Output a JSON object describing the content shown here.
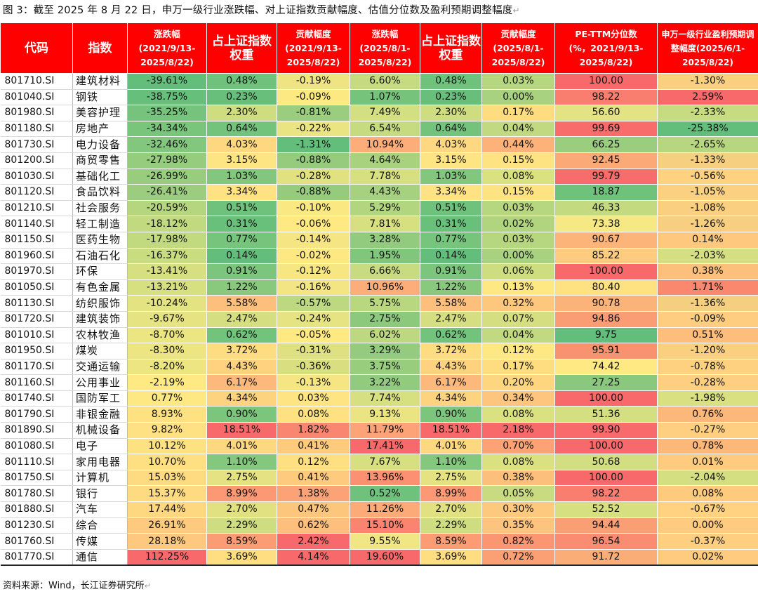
{
  "caption": "图 3：截至 2025 年 8 月 22 日，申万一级行业涨跌幅、对上证指数贡献幅度、估值分位数及盈利预期调整幅度",
  "source": "资料来源：Wind，长江证券研究所",
  "return_mark": "↵",
  "headers": [
    {
      "line1": "代码",
      "line2": "",
      "line3": ""
    },
    {
      "line1": "指数",
      "line2": "",
      "line3": ""
    },
    {
      "line1": "涨跌幅",
      "line2": "(2021/9/13-",
      "line3": "2025/8/22)"
    },
    {
      "line1": "占上证指数",
      "line2": "权重",
      "line3": ""
    },
    {
      "line1": "贡献幅度",
      "line2": "(2021/9/13-",
      "line3": "2025/8/22)"
    },
    {
      "line1": "涨跌幅",
      "line2": "(2025/8/1-",
      "line3": "2025/8/22)"
    },
    {
      "line1": "占上证指数",
      "line2": "权重",
      "line3": ""
    },
    {
      "line1": "贡献幅度",
      "line2": "(2025/8/1-",
      "line3": "2025/8/22)"
    },
    {
      "line1": "PE-TTM分位数",
      "line2": "(%，2021/9/13-",
      "line3": "2025/8/22)"
    },
    {
      "line1": "申万一级行业盈利预期调",
      "line2": "整幅度(2025/6/1-",
      "line3": "2025/8/22)"
    }
  ],
  "rows": [
    {
      "code": "801710.SI",
      "name": "建筑材料",
      "c1": "-39.61%",
      "c2": "0.48%",
      "c3": "-0.19%",
      "c4": "6.60%",
      "c5": "0.48%",
      "c6": "0.03%",
      "c7": "100.00",
      "c8": "-1.30%",
      "colors": [
        "#63be7b",
        "#6ec27b",
        "#eee482",
        "#c6db80",
        "#6ec27b",
        "#b6d67f",
        "#f8696b",
        "#f8d080"
      ]
    },
    {
      "code": "801040.SI",
      "name": "钢铁",
      "c1": "-38.75%",
      "c2": "0.23%",
      "c3": "-0.09%",
      "c4": "1.07%",
      "c5": "0.23%",
      "c6": "0.00%",
      "c7": "98.22",
      "c8": "2.59%",
      "colors": [
        "#66bf7b",
        "#67bf7b",
        "#fde982",
        "#76c47c",
        "#67bf7b",
        "#a8d27f",
        "#f97e6f",
        "#f8696b"
      ]
    },
    {
      "code": "801980.SI",
      "name": "美容护理",
      "c1": "-35.25%",
      "c2": "2.30%",
      "c3": "-0.81%",
      "c4": "7.49%",
      "c5": "2.30%",
      "c6": "0.17%",
      "c7": "56.60",
      "c8": "-2.33%",
      "colors": [
        "#75c37c",
        "#cfdd81",
        "#9bcd7e",
        "#d3df81",
        "#cfdd81",
        "#fedd81",
        "#e3e383",
        "#c7dc80"
      ]
    },
    {
      "code": "801180.SI",
      "name": "房地产",
      "c1": "-34.34%",
      "c2": "0.64%",
      "c3": "-0.22%",
      "c4": "6.54%",
      "c5": "0.64%",
      "c6": "0.04%",
      "c7": "99.69",
      "c8": "-25.38%",
      "colors": [
        "#7ac57c",
        "#73c37c",
        "#eae482",
        "#c6db80",
        "#73c37c",
        "#c1d980",
        "#f86d6c",
        "#63be7b"
      ]
    },
    {
      "code": "801730.SI",
      "name": "电力设备",
      "c1": "-32.46%",
      "c2": "4.03%",
      "c3": "-1.31%",
      "c4": "10.94%",
      "c5": "4.03%",
      "c6": "0.44%",
      "c7": "66.25",
      "c8": "-2.65%",
      "colors": [
        "#82c77d",
        "#fed880",
        "#63be7b",
        "#fcad79",
        "#fed880",
        "#fcb279",
        "#9bcd7e",
        "#b6d77f"
      ]
    },
    {
      "code": "801200.SI",
      "name": "商贸零售",
      "c1": "-27.98%",
      "c2": "3.15%",
      "c3": "-0.88%",
      "c4": "4.64%",
      "c5": "3.15%",
      "c6": "0.15%",
      "c7": "92.45",
      "c8": "-1.33%",
      "colors": [
        "#95cc7e",
        "#fee583",
        "#96cb7e",
        "#a9d27f",
        "#fee583",
        "#fee382",
        "#fbaa77",
        "#f6cf80"
      ]
    },
    {
      "code": "801030.SI",
      "name": "基础化工",
      "c1": "-26.99%",
      "c2": "1.03%",
      "c3": "-0.28%",
      "c4": "7.78%",
      "c5": "1.03%",
      "c6": "0.08%",
      "c7": "99.79",
      "c8": "-0.56%",
      "colors": [
        "#99cd7e",
        "#82c77d",
        "#e1e182",
        "#d7e081",
        "#82c77d",
        "#dae181",
        "#f86c6b",
        "#fed281"
      ]
    },
    {
      "code": "801120.SI",
      "name": "食品饮料",
      "c1": "-26.41%",
      "c2": "3.34%",
      "c3": "-0.88%",
      "c4": "4.43%",
      "c5": "3.34%",
      "c6": "0.15%",
      "c7": "18.87",
      "c8": "-1.05%",
      "colors": [
        "#9ccd7e",
        "#fee283",
        "#96cb7e",
        "#a6d17e",
        "#fee283",
        "#fee382",
        "#6fc27b",
        "#fbd080"
      ]
    },
    {
      "code": "801210.SI",
      "name": "社会服务",
      "c1": "-20.59%",
      "c2": "0.51%",
      "c3": "-0.10%",
      "c4": "5.29%",
      "c5": "0.51%",
      "c6": "0.03%",
      "c7": "46.33",
      "c8": "-1.08%",
      "colors": [
        "#b5d67f",
        "#6fc27b",
        "#fae882",
        "#b2d57f",
        "#6fc27b",
        "#b6d67f",
        "#c4da80",
        "#fad080"
      ]
    },
    {
      "code": "801140.SI",
      "name": "轻工制造",
      "c1": "-18.12%",
      "c2": "0.31%",
      "c3": "-0.06%",
      "c4": "7.81%",
      "c5": "0.31%",
      "c6": "0.02%",
      "c7": "73.38",
      "c8": "-1.26%",
      "colors": [
        "#c1da80",
        "#69c07b",
        "#fee983",
        "#d7e081",
        "#69c07b",
        "#b1d57f",
        "#f6e883",
        "#f8cf80"
      ]
    },
    {
      "code": "801150.SI",
      "name": "医药生物",
      "c1": "-17.98%",
      "c2": "0.77%",
      "c3": "-0.14%",
      "c4": "3.28%",
      "c5": "0.77%",
      "c6": "0.03%",
      "c7": "90.67",
      "c8": "0.14%",
      "colors": [
        "#c1da80",
        "#77c47c",
        "#f5e683",
        "#93cb7e",
        "#77c47c",
        "#b6d67f",
        "#fcb479",
        "#fec87e"
      ]
    },
    {
      "code": "801960.SI",
      "name": "石油石化",
      "c1": "-16.37%",
      "c2": "0.14%",
      "c3": "-0.02%",
      "c4": "1.95%",
      "c5": "0.14%",
      "c6": "0.00%",
      "c7": "85.22",
      "c8": "-2.03%",
      "colors": [
        "#c9dc80",
        "#64be7b",
        "#fee882",
        "#80c67d",
        "#64be7b",
        "#a8d27f",
        "#fdcc7e",
        "#d5df81"
      ]
    },
    {
      "code": "801970.SI",
      "name": "环保",
      "c1": "-13.41%",
      "c2": "0.91%",
      "c3": "-0.12%",
      "c4": "6.66%",
      "c5": "0.91%",
      "c6": "0.06%",
      "c7": "100.00",
      "c8": "0.38%",
      "colors": [
        "#d6e081",
        "#7cc57c",
        "#f7e783",
        "#c8db80",
        "#7cc57c",
        "#cfdd81",
        "#f8696b",
        "#fdc07c"
      ]
    },
    {
      "code": "801050.SI",
      "name": "有色金属",
      "c1": "-13.21%",
      "c2": "1.22%",
      "c3": "-0.16%",
      "c4": "10.96%",
      "c5": "1.22%",
      "c6": "0.13%",
      "c7": "80.40",
      "c8": "1.71%",
      "colors": [
        "#d7e081",
        "#89c97d",
        "#f3e583",
        "#fcad79",
        "#89c97d",
        "#fee883",
        "#fee282",
        "#f9886f"
      ]
    },
    {
      "code": "801130.SI",
      "name": "纺织服饰",
      "c1": "-10.24%",
      "c2": "5.58%",
      "c3": "-0.57%",
      "c4": "5.75%",
      "c5": "5.58%",
      "c6": "0.32%",
      "c7": "90.78",
      "c8": "-1.36%",
      "colors": [
        "#e4e382",
        "#fdc07c",
        "#bcd880",
        "#b9d77f",
        "#fdc07c",
        "#fdc77d",
        "#fcb379",
        "#f5cf80"
      ]
    },
    {
      "code": "801720.SI",
      "name": "建筑装饰",
      "c1": "-9.67%",
      "c2": "2.47%",
      "c3": "-0.24%",
      "c4": "2.75%",
      "c5": "2.47%",
      "c6": "0.07%",
      "c7": "94.86",
      "c8": "-0.09%",
      "colors": [
        "#e6e382",
        "#d5df81",
        "#e5e382",
        "#8dc97d",
        "#d5df81",
        "#d5df81",
        "#fa9c74",
        "#fecd80"
      ]
    },
    {
      "code": "801010.SI",
      "name": "农林牧渔",
      "c1": "-8.70%",
      "c2": "0.62%",
      "c3": "-0.05%",
      "c4": "6.02%",
      "c5": "0.62%",
      "c6": "0.04%",
      "c7": "9.75",
      "c8": "0.51%",
      "colors": [
        "#ebe582",
        "#72c37c",
        "#fee983",
        "#bdd880",
        "#72c37c",
        "#c1d980",
        "#63be7b",
        "#fdbd7b"
      ]
    },
    {
      "code": "801950.SI",
      "name": "煤炭",
      "c1": "-8.30%",
      "c2": "3.72%",
      "c3": "-0.31%",
      "c4": "3.29%",
      "c5": "3.72%",
      "c6": "0.12%",
      "c7": "95.91",
      "c8": "-1.20%",
      "colors": [
        "#ece582",
        "#fedd81",
        "#dee082",
        "#94cb7e",
        "#fedd81",
        "#fee883",
        "#f9926f",
        "#f9cf80"
      ]
    },
    {
      "code": "801170.SI",
      "name": "交通运输",
      "c1": "-8.20%",
      "c2": "4.43%",
      "c3": "-0.36%",
      "c4": "3.75%",
      "c5": "4.43%",
      "c6": "0.17%",
      "c7": "74.42",
      "c8": "-0.78%",
      "colors": [
        "#ede582",
        "#fed27f",
        "#d9df81",
        "#99cd7e",
        "#fed27f",
        "#fedd81",
        "#fee983",
        "#fdd180"
      ]
    },
    {
      "code": "801160.SI",
      "name": "公用事业",
      "c1": "-2.19%",
      "c2": "6.17%",
      "c3": "-0.13%",
      "c4": "3.22%",
      "c5": "6.17%",
      "c6": "0.20%",
      "c7": "27.25",
      "c8": "-0.28%",
      "colors": [
        "#fee983",
        "#fdb87b",
        "#f6e683",
        "#92cb7e",
        "#fdb87b",
        "#fed680",
        "#8ac87d",
        "#fecf80"
      ]
    },
    {
      "code": "801740.SI",
      "name": "国防军工",
      "c1": "0.77%",
      "c2": "4.34%",
      "c3": "0.03%",
      "c4": "7.74%",
      "c5": "4.34%",
      "c6": "0.34%",
      "c7": "100.00",
      "c8": "-1.98%",
      "colors": [
        "#fee883",
        "#fed37f",
        "#fee482",
        "#d6e081",
        "#fed37f",
        "#fdc57d",
        "#f8696b",
        "#d8e081"
      ]
    },
    {
      "code": "801790.SI",
      "name": "非银金融",
      "c1": "8.93%",
      "c2": "0.90%",
      "c3": "0.08%",
      "c4": "9.13%",
      "c5": "0.90%",
      "c6": "0.08%",
      "c7": "51.36",
      "c8": "0.76%",
      "colors": [
        "#fee282",
        "#7bc57c",
        "#fee282",
        "#eae482",
        "#7bc57c",
        "#dae181",
        "#d4df81",
        "#fcb77a"
      ]
    },
    {
      "code": "801890.SI",
      "name": "机械设备",
      "c1": "9.82%",
      "c2": "18.51%",
      "c3": "1.82%",
      "c4": "11.79%",
      "c5": "18.51%",
      "c6": "2.18%",
      "c7": "99.90",
      "c8": "-0.27%",
      "colors": [
        "#fee182",
        "#f8696b",
        "#f98670",
        "#fca377",
        "#f8696b",
        "#f8696b",
        "#f86a6b",
        "#fecf80"
      ]
    },
    {
      "code": "801080.SI",
      "name": "电子",
      "c1": "10.12%",
      "c2": "4.01%",
      "c3": "0.41%",
      "c4": "17.41%",
      "c5": "4.01%",
      "c6": "0.70%",
      "c7": "100.00",
      "c8": "0.78%",
      "colors": [
        "#fee182",
        "#fed880",
        "#fdca7e",
        "#f8696b",
        "#fed880",
        "#fba276",
        "#f8696b",
        "#fcb77a"
      ]
    },
    {
      "code": "801110.SI",
      "name": "家用电器",
      "c1": "10.70%",
      "c2": "1.10%",
      "c3": "0.12%",
      "c4": "7.67%",
      "c5": "1.10%",
      "c6": "0.08%",
      "c7": "50.68",
      "c8": "0.01%",
      "colors": [
        "#fee082",
        "#84c87d",
        "#fee082",
        "#d6e081",
        "#84c87d",
        "#dae181",
        "#d2de81",
        "#fecb7f"
      ]
    },
    {
      "code": "801750.SI",
      "name": "计算机",
      "c1": "15.03%",
      "c2": "2.75%",
      "c3": "0.41%",
      "c4": "13.96%",
      "c5": "2.75%",
      "c6": "0.38%",
      "c7": "100.00",
      "c8": "-2.04%",
      "colors": [
        "#fedb81",
        "#e4e282",
        "#fdca7e",
        "#fb9072",
        "#e4e282",
        "#fcbf7c",
        "#f8696b",
        "#d4df81"
      ]
    },
    {
      "code": "801780.SI",
      "name": "银行",
      "c1": "15.37%",
      "c2": "8.99%",
      "c3": "1.38%",
      "c4": "0.52%",
      "c5": "8.99%",
      "c6": "0.05%",
      "c7": "98.22",
      "c8": "0.08%",
      "colors": [
        "#fedb81",
        "#fc9874",
        "#fba276",
        "#6ec27b",
        "#fc9874",
        "#c9db80",
        "#f97e6f",
        "#feca7e"
      ]
    },
    {
      "code": "801880.SI",
      "name": "汽车",
      "c1": "17.44%",
      "c2": "2.70%",
      "c3": "0.47%",
      "c4": "11.26%",
      "c5": "2.70%",
      "c6": "0.30%",
      "c7": "52.52",
      "c8": "-0.67%",
      "colors": [
        "#fed880",
        "#e1e182",
        "#fdc67d",
        "#fcaa78",
        "#e1e182",
        "#fdc97e",
        "#d7e081",
        "#fed281"
      ]
    },
    {
      "code": "801230.SI",
      "name": "综合",
      "c1": "26.91%",
      "c2": "2.29%",
      "c3": "0.62%",
      "c4": "15.10%",
      "c5": "2.29%",
      "c6": "0.35%",
      "c7": "94.44",
      "c8": "0.00%",
      "colors": [
        "#fecb7e",
        "#cfdd81",
        "#fdbf7b",
        "#fa8470",
        "#cfdd81",
        "#fdc47d",
        "#fa9f74",
        "#fecb7f"
      ]
    },
    {
      "code": "801760.SI",
      "name": "传媒",
      "c1": "28.18%",
      "c2": "8.59%",
      "c3": "2.42%",
      "c4": "9.55%",
      "c5": "8.59%",
      "c6": "0.82%",
      "c7": "96.54",
      "c8": "-0.37%",
      "colors": [
        "#fec97e",
        "#fc9c75",
        "#f8696b",
        "#f0e683",
        "#fc9c75",
        "#fb9673",
        "#f98c71",
        "#fecf80"
      ]
    },
    {
      "code": "801770.SI",
      "name": "通信",
      "c1": "112.25%",
      "c2": "3.69%",
      "c3": "4.14%",
      "c4": "19.60%",
      "c5": "3.69%",
      "c6": "0.72%",
      "c7": "91.72",
      "c8": "0.02%",
      "colors": [
        "#f8696b",
        "#fede81",
        "#f8696b",
        "#f8696b",
        "#fede81",
        "#fba075",
        "#fbad77",
        "#fecb7f"
      ]
    }
  ]
}
